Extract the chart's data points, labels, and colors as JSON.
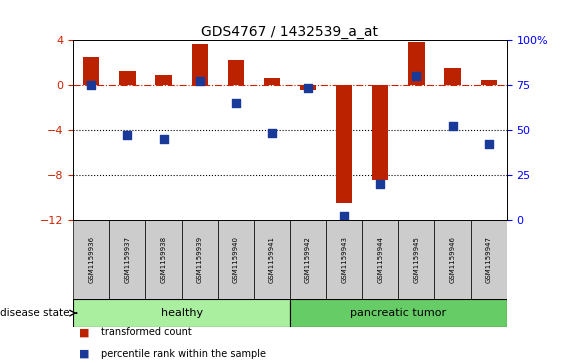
{
  "title": "GDS4767 / 1432539_a_at",
  "samples": [
    "GSM1159936",
    "GSM1159937",
    "GSM1159938",
    "GSM1159939",
    "GSM1159940",
    "GSM1159941",
    "GSM1159942",
    "GSM1159943",
    "GSM1159944",
    "GSM1159945",
    "GSM1159946",
    "GSM1159947"
  ],
  "transformed_count": [
    2.5,
    1.2,
    0.9,
    3.6,
    2.2,
    0.6,
    -0.5,
    -10.5,
    -8.5,
    3.8,
    1.5,
    0.4
  ],
  "percentile_rank": [
    75,
    47,
    45,
    77,
    65,
    48,
    73,
    2,
    20,
    80,
    52,
    42
  ],
  "ylim_left": [
    -12,
    4
  ],
  "ylim_right": [
    0,
    100
  ],
  "yticks_left": [
    -12,
    -8,
    -4,
    0,
    4
  ],
  "yticks_right": [
    0,
    25,
    50,
    75,
    100
  ],
  "dotted_lines": [
    -4,
    -8
  ],
  "bar_color": "#bb2200",
  "scatter_color": "#1a3a99",
  "hline_color": "#cc2200",
  "healthy_color": "#aaeea0",
  "tumor_color": "#66cc66",
  "label_bg_color": "#cccccc",
  "healthy_label": "healthy",
  "tumor_label": "pancreatic tumor",
  "disease_state_label": "disease state",
  "legend_bar_label": "transformed count",
  "legend_dot_label": "percentile rank within the sample",
  "n_healthy": 6,
  "n_tumor": 6,
  "bar_width": 0.45,
  "scatter_size": 30
}
